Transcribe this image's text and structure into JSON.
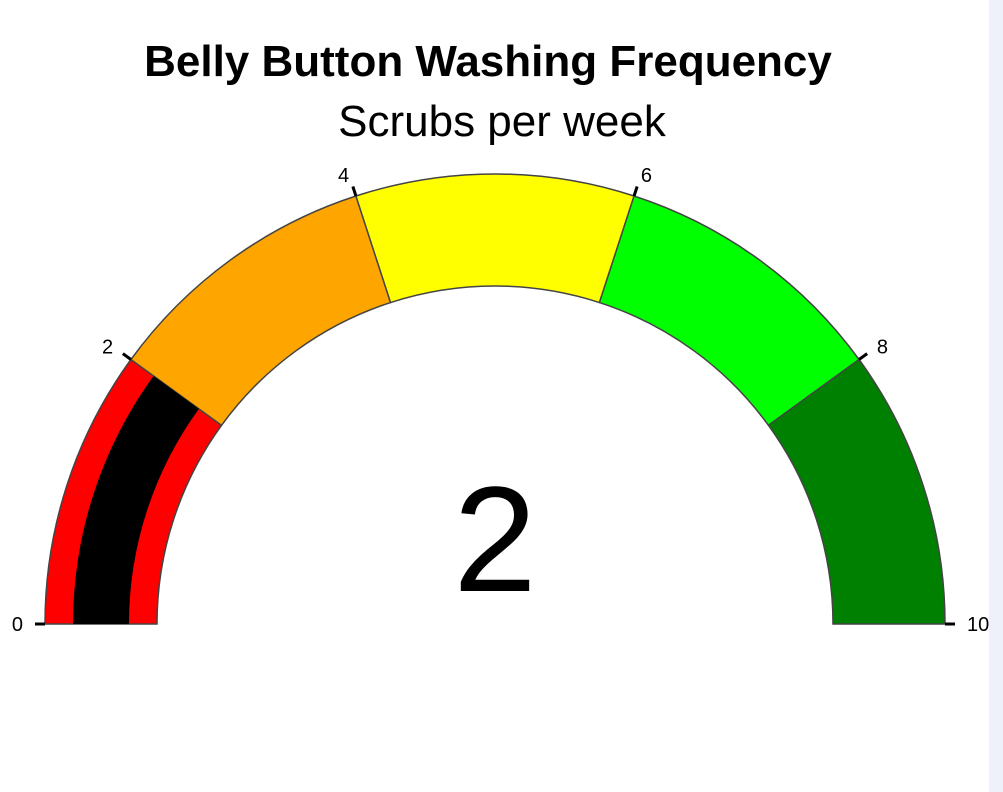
{
  "chart_data": {
    "type": "gauge",
    "title": "Belly Button Washing Frequency",
    "subtitle": "Scrubs per week",
    "value": 2,
    "value_label": "2",
    "range": [
      0,
      10
    ],
    "bands": [
      {
        "from": 0,
        "to": 2,
        "color": "#ff0000"
      },
      {
        "from": 2,
        "to": 4,
        "color": "#ffa500"
      },
      {
        "from": 4,
        "to": 6,
        "color": "#ffff00"
      },
      {
        "from": 6,
        "to": 8,
        "color": "#00ff00"
      },
      {
        "from": 8,
        "to": 10,
        "color": "#008000"
      }
    ],
    "bar_color": "#000000",
    "border_color": "#444444",
    "ticks": [
      {
        "value": 0,
        "label": "0"
      },
      {
        "value": 2,
        "label": "2"
      },
      {
        "value": 4,
        "label": "4"
      },
      {
        "value": 6,
        "label": "6"
      },
      {
        "value": 8,
        "label": "8"
      },
      {
        "value": 10,
        "label": "10"
      }
    ]
  }
}
